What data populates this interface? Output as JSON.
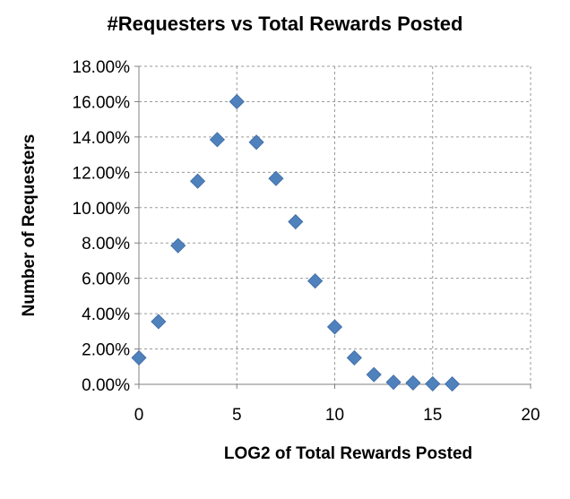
{
  "chart_data": {
    "type": "scatter",
    "title": "#Requesters vs Total Rewards Posted",
    "xlabel": "LOG2 of Total Rewards Posted",
    "ylabel": "Number of Requesters",
    "xlim": [
      0,
      20
    ],
    "ylim": [
      0,
      18
    ],
    "x_ticks": [
      0,
      5,
      10,
      15,
      20
    ],
    "y_ticks": [
      0,
      2,
      4,
      6,
      8,
      10,
      12,
      14,
      16,
      18
    ],
    "x_tick_labels": [
      "0",
      "5",
      "10",
      "15",
      "20"
    ],
    "y_tick_labels": [
      "0.00%",
      "2.00%",
      "4.00%",
      "6.00%",
      "8.00%",
      "10.00%",
      "12.00%",
      "14.00%",
      "16.00%",
      "18.00%"
    ],
    "grid": true,
    "marker": "diamond",
    "marker_color": "#4F81BD",
    "points": [
      {
        "x": 0,
        "y": 1.5
      },
      {
        "x": 1,
        "y": 3.55
      },
      {
        "x": 2,
        "y": 7.85
      },
      {
        "x": 3,
        "y": 11.5
      },
      {
        "x": 4,
        "y": 13.85
      },
      {
        "x": 5,
        "y": 16.0
      },
      {
        "x": 6,
        "y": 13.7
      },
      {
        "x": 7,
        "y": 11.65
      },
      {
        "x": 8,
        "y": 9.2
      },
      {
        "x": 9,
        "y": 5.85
      },
      {
        "x": 10,
        "y": 3.25
      },
      {
        "x": 11,
        "y": 1.5
      },
      {
        "x": 12,
        "y": 0.55
      },
      {
        "x": 13,
        "y": 0.12
      },
      {
        "x": 14,
        "y": 0.08
      },
      {
        "x": 15,
        "y": 0.03
      },
      {
        "x": 16,
        "y": 0.02
      }
    ]
  }
}
